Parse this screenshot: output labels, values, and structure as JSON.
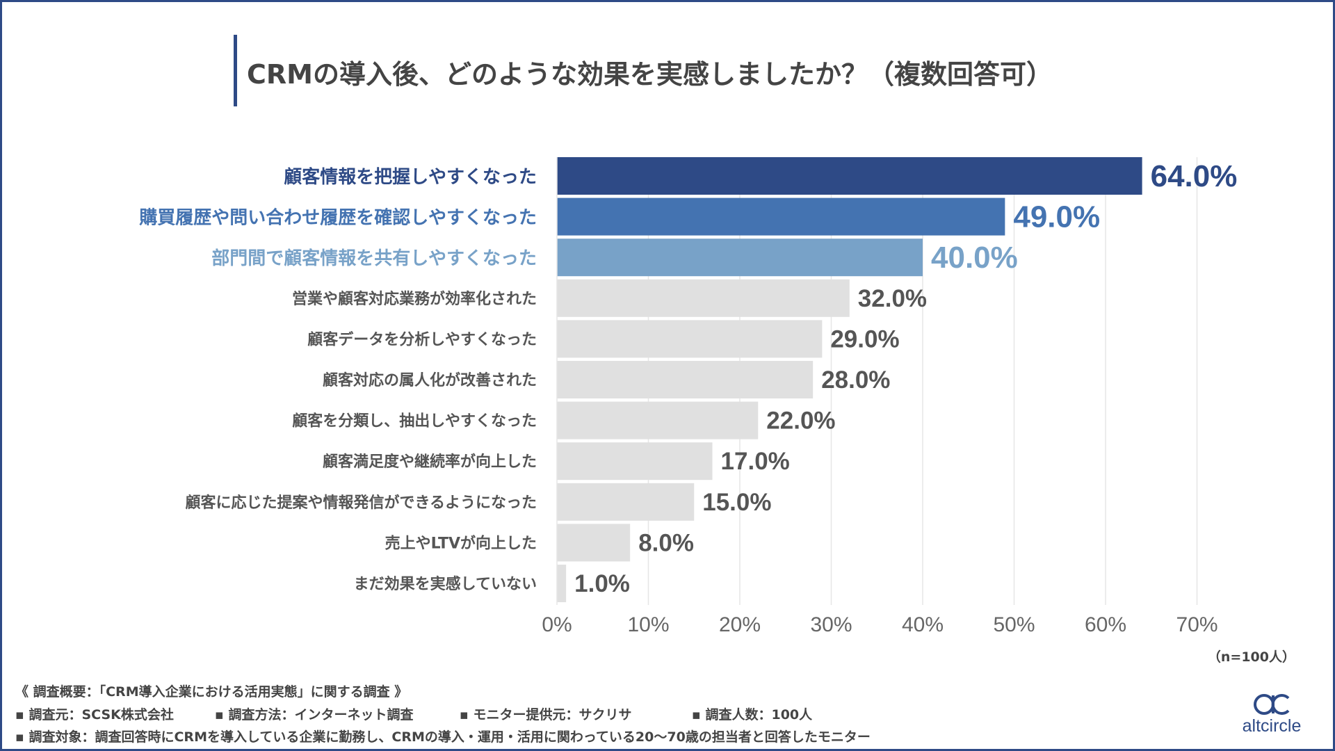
{
  "title": "CRMの導入後、どのような効果を実感しましたか？（複数回答可）",
  "colors": {
    "frame": "#2e4a86",
    "highlight1": "#2e4a86",
    "highlight2": "#4473b1",
    "highlight3": "#78a2c8",
    "other": "#e0e0e0",
    "other_text": "#555555"
  },
  "chart_data": {
    "type": "bar",
    "orientation": "horizontal",
    "categories": [
      "顧客情報を把握しやすくなった",
      "購買履歴や問い合わせ履歴を確認しやすくなった",
      "部門間で顧客情報を共有しやすくなった",
      "営業や顧客対応業務が効率化された",
      "顧客データを分析しやすくなった",
      "顧客対応の属人化が改善された",
      "顧客を分類し、抽出しやすくなった",
      "顧客満足度や継続率が向上した",
      "顧客に応じた提案や情報発信ができるようになった",
      "売上やLTVが向上した",
      "まだ効果を実感していない"
    ],
    "values": [
      64.0,
      49.0,
      40.0,
      32.0,
      29.0,
      28.0,
      22.0,
      17.0,
      15.0,
      8.0,
      1.0
    ],
    "value_labels": [
      "64.0%",
      "49.0%",
      "40.0%",
      "32.0%",
      "29.0%",
      "28.0%",
      "22.0%",
      "17.0%",
      "15.0%",
      "8.0%",
      "1.0%"
    ],
    "xticks": [
      "0%",
      "10%",
      "20%",
      "30%",
      "40%",
      "50%",
      "60%",
      "70%"
    ],
    "xlim": [
      0,
      70
    ],
    "grid": true
  },
  "sample_note": "（n=100人）",
  "footer": {
    "summary": "《 調査概要：「CRM導入企業における活用実態」に関する調査 》",
    "source": "▪ 調査元：SCSK株式会社",
    "method": "▪ 調査方法：インターネット調査",
    "monitor": "▪ モニター提供元：サクリサ",
    "count": "▪ 調査人数：100人",
    "target": "▪ 調査対象：調査回答時にCRMを導入している企業に勤務し、CRMの導入・運用・活用に関わっている20〜70歳の担当者と回答したモニター"
  },
  "logo": {
    "mark": "ac",
    "brand": "altcircle"
  }
}
